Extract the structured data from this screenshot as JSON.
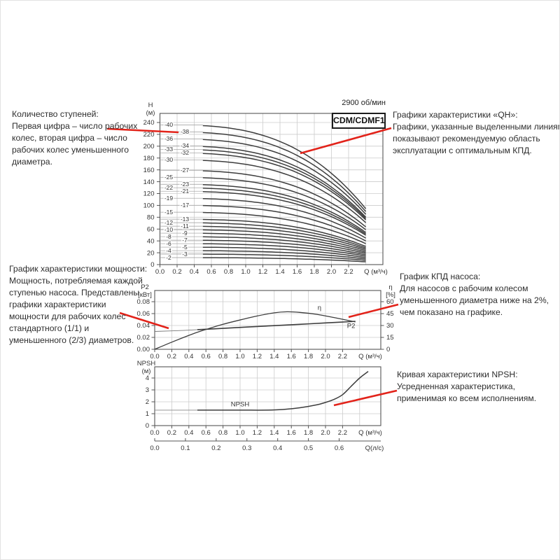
{
  "colors": {
    "annotation_red": "#e2231a",
    "curve": "#3d3d3d",
    "grid": "#cccccc",
    "axis": "#555555",
    "text": "#333333"
  },
  "header": {
    "speed": "2900 об/мин",
    "title": "CDM/CDMF1"
  },
  "annotations": {
    "stages": {
      "lines": [
        "Количество ступеней:",
        "Первая цифра – число рабочих",
        "колес, вторая цифра – число",
        "рабочих колес уменьшенного",
        "диаметра."
      ]
    },
    "qh": {
      "lines": [
        "Графики характеристики «QH»:",
        "Графики, указанные выделенными линиями,",
        "показывают рекомендуемую область",
        "эксплуатации с оптимальным КПД."
      ]
    },
    "power": {
      "lines": [
        "График характеристики мощности:",
        "Мощность, потребляемая каждой",
        "ступенью насоса. Представлены",
        "графики характеристики",
        "мощности для рабочих колес",
        "стандартного (1/1) и",
        "уменьшенного (2/3) диаметров."
      ]
    },
    "efficiency": {
      "lines": [
        "График КПД насоса:",
        "Для насосов с рабочим колесом",
        "уменьшенного диаметра ниже на 2%,",
        "чем показано на графике."
      ]
    },
    "npsh": {
      "lines": [
        "Кривая характеристики NPSH:",
        "Усредненная характеристика,",
        "применимая ко всем исполнениям."
      ]
    }
  },
  "chart_data": [
    {
      "id": "qh",
      "type": "line",
      "title": "CDM/CDMF1",
      "note": "2900 об/мин",
      "ylabel": "H",
      "ylabel_unit": "(м)",
      "xlabel": "Q (м³/ч)",
      "xlim": [
        0,
        2.6
      ],
      "ylim": [
        0,
        255
      ],
      "grid": true,
      "x_ticks": [
        "0.0",
        "0.2",
        "0.4",
        "0.6",
        "0.8",
        "1.0",
        "1.2",
        "1.4",
        "1.6",
        "1.8",
        "2.0",
        "2.2"
      ],
      "y_ticks": [
        0,
        20,
        40,
        60,
        80,
        100,
        120,
        140,
        160,
        180,
        200,
        220,
        240
      ],
      "curve_q_range": [
        0.5,
        2.4
      ],
      "curve_model": "H(q) = shutoff_head - (shutoff_head - end_head) * (q/2.4)^3",
      "curves": [
        {
          "label": "-40",
          "col": "near",
          "shutoff_head": 236.0,
          "end_head": 94.4
        },
        {
          "label": "-38",
          "col": "far",
          "shutoff_head": 224.2,
          "end_head": 89.7
        },
        {
          "label": "-36",
          "col": "near",
          "shutoff_head": 212.4,
          "end_head": 85.0
        },
        {
          "label": "-34",
          "col": "far",
          "shutoff_head": 200.6,
          "end_head": 80.2
        },
        {
          "label": "-33",
          "col": "near",
          "shutoff_head": 194.7,
          "end_head": 77.9
        },
        {
          "label": "-32",
          "col": "far",
          "shutoff_head": 188.8,
          "end_head": 75.5
        },
        {
          "label": "-30",
          "col": "near",
          "shutoff_head": 177.0,
          "end_head": 70.8
        },
        {
          "label": "-27",
          "col": "far",
          "shutoff_head": 159.3,
          "end_head": 63.7
        },
        {
          "label": "-25",
          "col": "near",
          "shutoff_head": 147.5,
          "end_head": 59.0
        },
        {
          "label": "-23",
          "col": "far",
          "shutoff_head": 135.7,
          "end_head": 54.3
        },
        {
          "label": "-22",
          "col": "near",
          "shutoff_head": 129.8,
          "end_head": 51.9
        },
        {
          "label": "-21",
          "col": "far",
          "shutoff_head": 123.9,
          "end_head": 49.6
        },
        {
          "label": "-19",
          "col": "near",
          "shutoff_head": 112.1,
          "end_head": 44.8
        },
        {
          "label": "-17",
          "col": "far",
          "shutoff_head": 100.3,
          "end_head": 40.1
        },
        {
          "label": "-15",
          "col": "near",
          "shutoff_head": 88.5,
          "end_head": 35.4
        },
        {
          "label": "-13",
          "col": "far",
          "shutoff_head": 76.7,
          "end_head": 30.7
        },
        {
          "label": "-12",
          "col": "near",
          "shutoff_head": 70.8,
          "end_head": 28.3
        },
        {
          "label": "-11",
          "col": "far",
          "shutoff_head": 64.9,
          "end_head": 26.0
        },
        {
          "label": "-10",
          "col": "near",
          "shutoff_head": 59.0,
          "end_head": 23.6
        },
        {
          "label": "-9",
          "col": "far",
          "shutoff_head": 53.1,
          "end_head": 21.2
        },
        {
          "label": "-8",
          "col": "near",
          "shutoff_head": 47.2,
          "end_head": 18.9
        },
        {
          "label": "-7",
          "col": "far",
          "shutoff_head": 41.3,
          "end_head": 16.5
        },
        {
          "label": "-6",
          "col": "near",
          "shutoff_head": 35.4,
          "end_head": 14.2
        },
        {
          "label": "-5",
          "col": "far",
          "shutoff_head": 29.5,
          "end_head": 11.8
        },
        {
          "label": "-4",
          "col": "near",
          "shutoff_head": 23.6,
          "end_head": 9.4
        },
        {
          "label": "-3",
          "col": "far",
          "shutoff_head": 17.7,
          "end_head": 7.1
        },
        {
          "label": "-2",
          "col": "near",
          "shutoff_head": 11.8,
          "end_head": 4.7
        }
      ]
    },
    {
      "id": "power_efficiency",
      "type": "line",
      "ylabel_left": "P2",
      "ylabel_left_unit": "[кВт]",
      "ylabel_right": "η",
      "ylabel_right_unit": "[%]",
      "xlabel": "Q (м³/ч)",
      "grid": true,
      "x_ticks": [
        "0.0",
        "0.2",
        "0.4",
        "0.6",
        "0.8",
        "1.0",
        "1.2",
        "1.4",
        "1.6",
        "1.8",
        "2.0",
        "2.2"
      ],
      "yleft_ticks": [
        "0.00",
        "0.02",
        "0.04",
        "0.06",
        "0.08"
      ],
      "yright_ticks": [
        0,
        15,
        30,
        45,
        60
      ],
      "yleft_lim": [
        0,
        0.08
      ],
      "yright_lim": [
        0,
        60
      ],
      "series": [
        {
          "name": "η",
          "axis": "right",
          "label_at": [
            1.93,
            50
          ],
          "points": [
            [
              0,
              0
            ],
            [
              0.2,
              9
            ],
            [
              0.4,
              17.5
            ],
            [
              0.5,
              21.5
            ],
            [
              0.6,
              25
            ],
            [
              0.8,
              31.5
            ],
            [
              1.0,
              37
            ],
            [
              1.2,
              42
            ],
            [
              1.4,
              46
            ],
            [
              1.55,
              47.3
            ],
            [
              1.7,
              46.5
            ],
            [
              1.9,
              44
            ],
            [
              2.1,
              40
            ],
            [
              2.35,
              34.5
            ]
          ]
        },
        {
          "name": "P2",
          "axis": "left",
          "label_at": [
            2.3,
            0.036
          ],
          "points": [
            [
              0,
              0.03
            ],
            [
              0.3,
              0.0315
            ],
            [
              0.5,
              0.033
            ],
            [
              0.8,
              0.0352
            ],
            [
              1.1,
              0.0376
            ],
            [
              1.4,
              0.0398
            ],
            [
              1.7,
              0.042
            ],
            [
              2.0,
              0.0443
            ],
            [
              2.2,
              0.0458
            ],
            [
              2.35,
              0.047
            ]
          ]
        }
      ]
    },
    {
      "id": "npsh",
      "type": "line",
      "ylabel": "NPSH",
      "ylabel_unit": "(м)",
      "xlabel": "Q (м³/ч)",
      "xlabel_secondary": "Q(л/с)",
      "grid": true,
      "x_ticks": [
        "0.0",
        "0.2",
        "0.4",
        "0.6",
        "0.8",
        "1.0",
        "1.2",
        "1.4",
        "1.6",
        "1.8",
        "2.0",
        "2.2"
      ],
      "y_ticks": [
        0,
        1,
        2,
        3,
        4
      ],
      "x2_ticks": [
        "0.0",
        "0.1",
        "0.2",
        "0.3",
        "0.4",
        "0.5",
        "0.6"
      ],
      "ylim": [
        0,
        5
      ],
      "series": [
        {
          "name": "NPSH",
          "label_at": [
            1.0,
            1.62
          ],
          "points": [
            [
              0,
              1.3
            ],
            [
              0.5,
              1.3
            ],
            [
              1.0,
              1.3
            ],
            [
              1.3,
              1.3
            ],
            [
              1.5,
              1.35
            ],
            [
              1.7,
              1.5
            ],
            [
              1.9,
              1.75
            ],
            [
              2.0,
              1.95
            ],
            [
              2.1,
              2.2
            ],
            [
              2.2,
              2.6
            ],
            [
              2.3,
              3.3
            ],
            [
              2.4,
              4.0
            ],
            [
              2.5,
              4.55
            ]
          ]
        }
      ]
    }
  ]
}
